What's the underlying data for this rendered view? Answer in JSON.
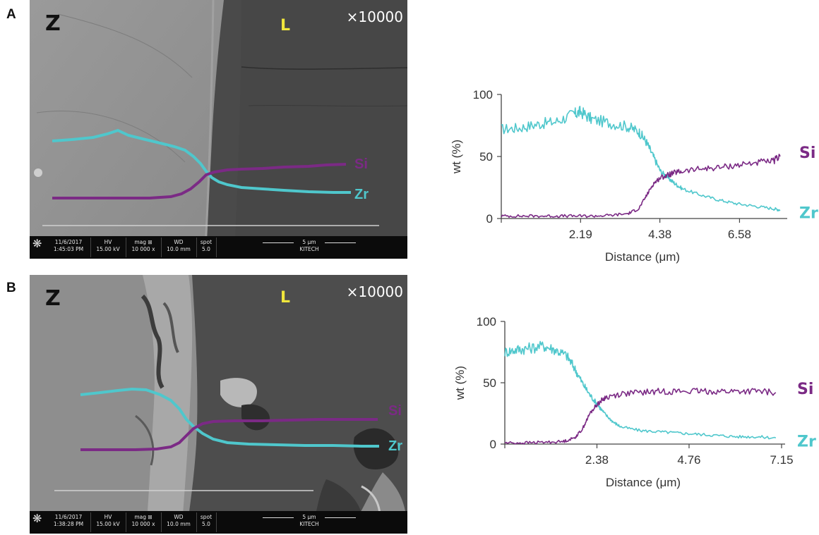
{
  "panels": [
    {
      "letter": "A",
      "sem": {
        "z_label": "Z",
        "l_label": "L",
        "magnification": "×10000",
        "si_label": "Si",
        "zr_label": "Zr",
        "databar": {
          "date": "11/6/2017",
          "time": "1:45:03 PM",
          "hv_title": "HV",
          "hv": "15.00 kV",
          "mag_title": "mag ⊞",
          "mag": "10 000 x",
          "wd_title": "WD",
          "wd": "10.0 mm",
          "spot_title": "spot",
          "spot": "5.0",
          "scale": "5 μm",
          "institution": "KITECH"
        }
      }
    },
    {
      "letter": "B",
      "sem": {
        "z_label": "Z",
        "l_label": "L",
        "magnification": "×10000",
        "si_label": "Si",
        "zr_label": "Zr",
        "databar": {
          "date": "11/6/2017",
          "time": "1:38:28 PM",
          "hv_title": "HV",
          "hv": "15.00 kV",
          "mag_title": "mag ⊞",
          "mag": "10 000 x",
          "wd_title": "WD",
          "wd": "10.0 mm",
          "spot_title": "spot",
          "spot": "5.0",
          "scale": "5 μm",
          "institution": "KITECH"
        }
      }
    }
  ],
  "colors": {
    "si": "#7b2a85",
    "zr": "#4fc7cc",
    "axis": "#444444"
  },
  "chart_data": [
    {
      "type": "line",
      "xlabel": "Distance (μm)",
      "ylabel": "wt (%)",
      "xlim": [
        0,
        7.8
      ],
      "ylim": [
        0,
        100
      ],
      "xticks": [
        2.19,
        4.38,
        6.58
      ],
      "yticks": [
        0,
        50,
        100
      ],
      "grid": false,
      "series": [
        {
          "name": "Si",
          "x": [
            0,
            0.5,
            1.0,
            1.5,
            2.0,
            2.5,
            3.0,
            3.5,
            3.8,
            4.0,
            4.2,
            4.4,
            4.6,
            4.8,
            5.0,
            5.5,
            6.0,
            6.5,
            7.0,
            7.5,
            7.7
          ],
          "y": [
            2,
            2,
            2,
            2,
            2,
            2,
            2.5,
            4,
            8,
            18,
            28,
            33,
            35,
            37,
            38,
            40,
            41,
            43,
            45,
            46,
            50
          ]
        },
        {
          "name": "Zr",
          "x": [
            0,
            0.5,
            1.0,
            1.5,
            2.0,
            2.2,
            2.5,
            3.0,
            3.5,
            3.8,
            4.0,
            4.2,
            4.4,
            4.6,
            4.8,
            5.0,
            5.5,
            6.0,
            6.5,
            7.0,
            7.5,
            7.7
          ],
          "y": [
            72,
            73,
            76,
            78,
            84,
            86,
            80,
            77,
            74,
            70,
            62,
            50,
            38,
            33,
            28,
            24,
            19,
            15,
            12,
            10,
            8,
            7
          ]
        }
      ]
    },
    {
      "type": "line",
      "xlabel": "Distance (μm)",
      "ylabel": "wt (%)",
      "xlim": [
        0,
        7.15
      ],
      "ylim": [
        0,
        100
      ],
      "xticks": [
        2.38,
        4.76,
        7.15
      ],
      "yticks": [
        0,
        50,
        100
      ],
      "grid": false,
      "series": [
        {
          "name": "Si",
          "x": [
            0,
            0.5,
            1.0,
            1.5,
            1.8,
            2.0,
            2.2,
            2.4,
            2.6,
            3.0,
            3.5,
            4.0,
            4.5,
            5.0,
            5.5,
            6.0,
            6.5,
            7.0
          ],
          "y": [
            1,
            1,
            1.5,
            2,
            5,
            12,
            25,
            33,
            38,
            41,
            42,
            43,
            43,
            43,
            43,
            43,
            43,
            42
          ]
        },
        {
          "name": "Zr",
          "x": [
            0,
            0.3,
            0.6,
            1.0,
            1.3,
            1.6,
            1.8,
            2.0,
            2.2,
            2.4,
            2.6,
            2.8,
            3.0,
            3.5,
            4.0,
            4.5,
            5.0,
            5.5,
            6.0,
            6.5,
            7.0
          ],
          "y": [
            75,
            77,
            78,
            80,
            77,
            72,
            62,
            50,
            40,
            32,
            24,
            18,
            14,
            11,
            10,
            9,
            8,
            7,
            6,
            6,
            5
          ]
        }
      ]
    }
  ]
}
